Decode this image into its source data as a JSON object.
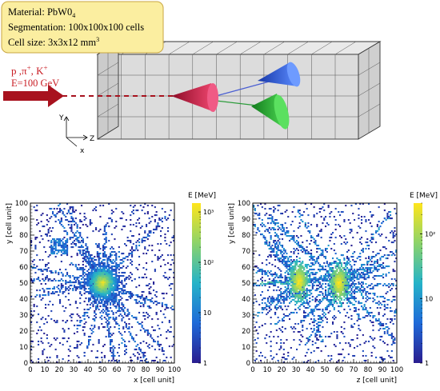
{
  "info_box": {
    "lines": [
      "Material: PbW0",
      "Segmentation: 100x100x100 cells",
      "Cell size: 3x3x12 mm"
    ],
    "material_subscript": "4",
    "cellsize_superscript": "3"
  },
  "beam": {
    "particles": "p ,π",
    "particle_sup1": "+",
    "particle_k": ", K",
    "particle_sup2": "+",
    "energy": "E=100 GeV"
  },
  "axes_label": {
    "y": "Y",
    "z": "Z",
    "x": "x"
  },
  "colors": {
    "beam_arrow": "#a8121e",
    "box_fill": "#fbeea0",
    "cone_red": "#d81b43",
    "cone_blue": "#2f5fe8",
    "cone_green": "#2bb03a"
  },
  "chart_data": [
    {
      "type": "heatmap",
      "xlabel": "x [cell unit]",
      "ylabel": "y [cell unit]",
      "colorbar_label": "E [MeV]",
      "xlim": [
        0,
        100
      ],
      "ylim": [
        0,
        100
      ],
      "xticks": [
        0,
        10,
        20,
        30,
        40,
        50,
        60,
        70,
        80,
        90,
        100
      ],
      "yticks": [
        0,
        10,
        20,
        30,
        40,
        50,
        60,
        70,
        80,
        90,
        100
      ],
      "colorbar_ticks": [
        "1",
        "10",
        "10²",
        "10³"
      ],
      "colorbar_range": [
        1,
        1500
      ],
      "log_scale": true,
      "hotspots": [
        {
          "x": 50,
          "y": 50,
          "peak_mev": 1000
        }
      ]
    },
    {
      "type": "heatmap",
      "xlabel": "z [cell unit]",
      "ylabel": "y [cell unit]",
      "colorbar_label": "E [MeV]",
      "xlim": [
        0,
        100
      ],
      "ylim": [
        0,
        100
      ],
      "xticks": [
        0,
        10,
        20,
        30,
        40,
        50,
        60,
        70,
        80,
        90,
        100
      ],
      "yticks": [
        0,
        10,
        20,
        30,
        40,
        50,
        60,
        70,
        80,
        90,
        100
      ],
      "colorbar_ticks": [
        "1",
        "10",
        "10²"
      ],
      "colorbar_range": [
        1,
        300
      ],
      "log_scale": true,
      "hotspots": [
        {
          "x": 32,
          "y": 51,
          "peak_mev": 250
        },
        {
          "x": 60,
          "y": 50,
          "peak_mev": 250
        }
      ]
    }
  ]
}
